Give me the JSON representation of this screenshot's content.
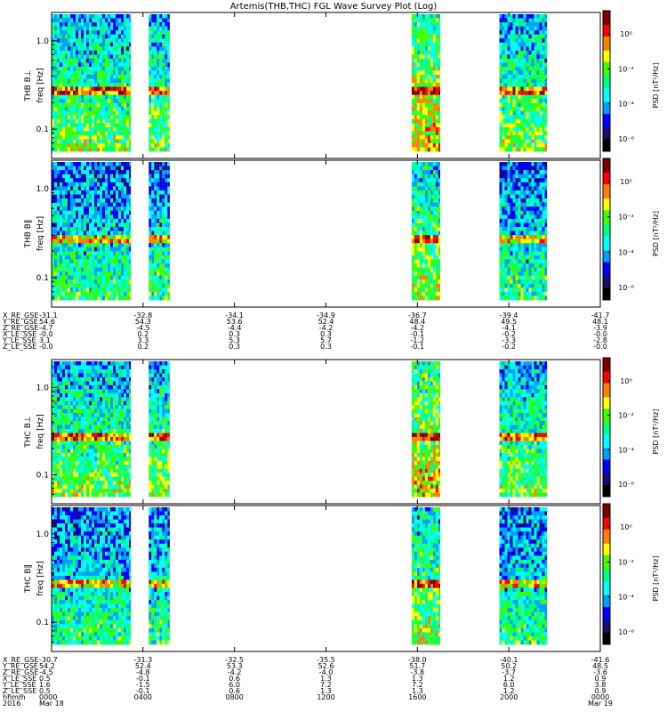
{
  "title": "Artemis(THB,THC) FGL Wave Survey Plot (Log)",
  "colors": {
    "colormap": [
      "#000000",
      "#1a0b6e",
      "#0000ff",
      "#00a0ff",
      "#00ffff",
      "#00ff80",
      "#40ff00",
      "#ffff00",
      "#ff8000",
      "#ff0000",
      "#800000"
    ],
    "data_gap": "#ffffff"
  },
  "chart_data": [
    {
      "type": "heatmap",
      "panel": "THB B⊥",
      "ylabel_top": "THB B⊥",
      "ylabel": "freq [Hz]",
      "yscale": "log",
      "yticks": [
        "1.0",
        "0.1"
      ],
      "zlabel": "PSD [nT²/Hz]",
      "zticks": [
        "10⁰",
        "10⁻²",
        "10⁻⁴",
        "10⁻⁶"
      ],
      "data_intervals_hhmm": [
        [
          "0000",
          "0328"
        ],
        [
          "0415",
          "0510"
        ],
        [
          "1545",
          "1700"
        ],
        [
          "1935",
          "2140"
        ]
      ]
    },
    {
      "type": "heatmap",
      "panel": "THB B∥",
      "ylabel_top": "THB B‖",
      "ylabel": "freq [Hz]",
      "yscale": "log",
      "yticks": [
        "1.0",
        "0.1"
      ],
      "zlabel": "PSD [nT²/Hz]",
      "zticks": [
        "10⁰",
        "10⁻²",
        "10⁻⁴",
        "10⁻⁶"
      ],
      "data_intervals_hhmm": [
        [
          "0000",
          "0328"
        ],
        [
          "0415",
          "0510"
        ],
        [
          "1545",
          "1700"
        ],
        [
          "1935",
          "2140"
        ]
      ]
    },
    {
      "type": "heatmap",
      "panel": "THC B⊥",
      "ylabel_top": "THC B⊥",
      "ylabel": "freq [Hz]",
      "yscale": "log",
      "yticks": [
        "1.0",
        "0.1"
      ],
      "zlabel": "PSD [nT²/Hz]",
      "zticks": [
        "10⁰",
        "10⁻²",
        "10⁻⁴",
        "10⁻⁶"
      ],
      "data_intervals_hhmm": [
        [
          "0000",
          "0328"
        ],
        [
          "0415",
          "0510"
        ],
        [
          "1545",
          "1700"
        ],
        [
          "1935",
          "2140"
        ]
      ]
    },
    {
      "type": "heatmap",
      "panel": "THC B∥",
      "ylabel_top": "THC B‖",
      "ylabel": "freq [Hz]",
      "yscale": "log",
      "yticks": [
        "1.0",
        "0.1"
      ],
      "zlabel": "PSD [nT²/Hz]",
      "zticks": [
        "10⁰",
        "10⁻²",
        "10⁻⁴",
        "10⁻⁶"
      ],
      "data_intervals_hhmm": [
        [
          "0000",
          "0328"
        ],
        [
          "0415",
          "0510"
        ],
        [
          "1545",
          "1700"
        ],
        [
          "1935",
          "2140"
        ]
      ]
    }
  ],
  "ephemeris_thb": {
    "labels": [
      "X_RE_GSE",
      "Y_RE_GSE",
      "Z_RE_GSE",
      "X_LE_SSE",
      "Y_LE_SSE",
      "Z_LE_SSE"
    ],
    "columns": [
      [
        "-31.1",
        "54.6",
        "-4.7",
        "-0.0",
        "3.1",
        "-0.0"
      ],
      [
        "-32.8",
        "54.3",
        "-4.5",
        "0.2",
        "3.3",
        "0.2"
      ],
      [
        "-34.1",
        "53.6",
        "-4.4",
        "0.3",
        "5.3",
        "0.3"
      ],
      [
        "-34.9",
        "52.4",
        "-4.2",
        "0.3",
        "5.7",
        "0.3"
      ],
      [
        "-36.7",
        "48.4",
        "-4.2",
        "-0.1",
        "-1.2",
        "-0.1"
      ],
      [
        "-39.4",
        "49.5",
        "-4.1",
        "-0.2",
        "-3.3",
        "-0.2"
      ],
      [
        "-41.7",
        "48.1",
        "-3.9",
        "-0.0",
        "-2.8",
        "-0.0"
      ]
    ]
  },
  "ephemeris_thc": {
    "labels": [
      "X_RE_GSE",
      "Y_RE_GSE",
      "Z_RE_GSE",
      "X_LE_SSE",
      "Y_LE_SSE",
      "Z_LE_SSE"
    ],
    "columns": [
      [
        "-30.7",
        "54.2",
        "-4.5",
        "0.5",
        "1.6",
        "0.5"
      ],
      [
        "-31.3",
        "52.4",
        "-4.8",
        "-0.1",
        "-1.5",
        "-0.1"
      ],
      [
        "-32.5",
        "53.3",
        "-4.2",
        "0.6",
        "6.0",
        "0.6"
      ],
      [
        "-35.5",
        "52.6",
        "-4.0",
        "1.3",
        "7.2",
        "1.3"
      ],
      [
        "-38.0",
        "51.7",
        "-3.8",
        "1.3",
        "7.2",
        "1.3"
      ],
      [
        "-40.1",
        "50.2",
        "-3.7",
        "1.2",
        "6.0",
        "1.2"
      ],
      [
        "-41.6",
        "48.5",
        "-3.6",
        "0.9",
        "3.8",
        "0.9"
      ]
    ]
  },
  "time_axis": {
    "hhmm_label": "hhmm",
    "year_label": "2016",
    "ticks_hhmm": [
      "0000",
      "0400",
      "0800",
      "1200",
      "1600",
      "2000",
      "0000"
    ],
    "date_start": "Mar 18",
    "date_end": "Mar 19"
  }
}
